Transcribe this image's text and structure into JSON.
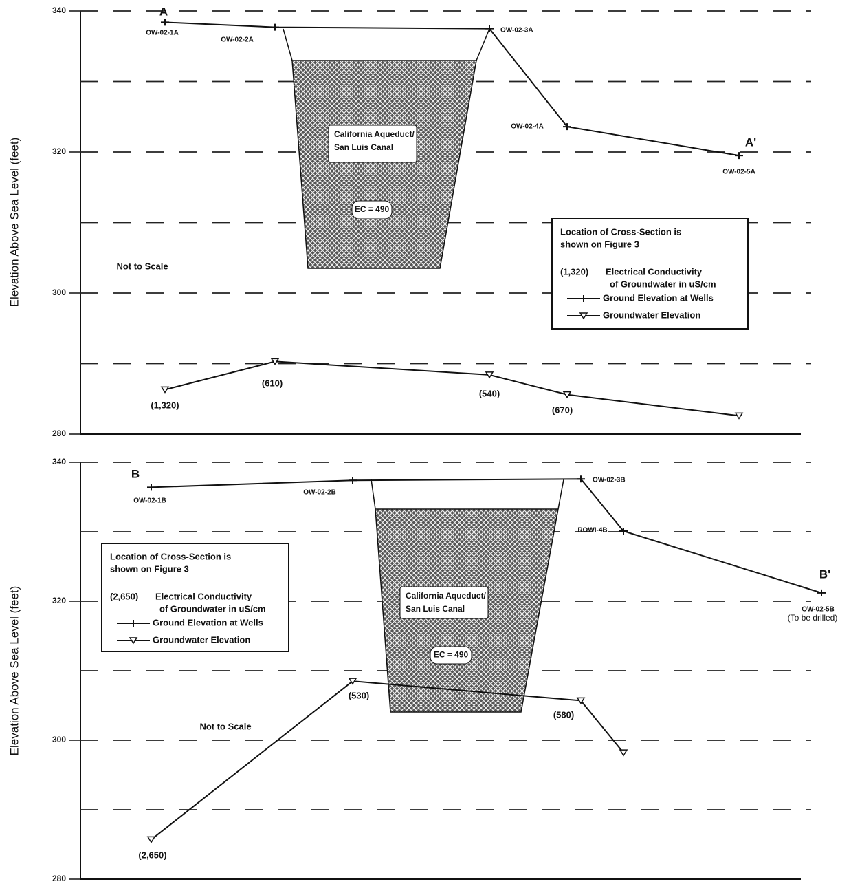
{
  "chart_data": [
    {
      "type": "line",
      "ylabel": "Elevation Above Sea Level (feet)",
      "ylim": [
        280,
        340
      ],
      "yticks": [
        280,
        300,
        320,
        340
      ],
      "minor_yticks": [
        290,
        310,
        330
      ],
      "categories": [
        "OW-02-1A",
        "OW-02-2A",
        "OW-02-3A",
        "OW-02-4A",
        "OW-02-5A"
      ],
      "series": [
        {
          "name": "Ground Elevation at Wells",
          "color": "#111111",
          "values": [
            338.4,
            337.7,
            337.5,
            323.6,
            319.5
          ]
        },
        {
          "name": "Groundwater Elevation",
          "color": "#111111",
          "values": [
            286.3,
            290.3,
            288.4,
            285.6,
            282.6
          ],
          "ec_labels": [
            "(1,320)",
            "(610)",
            "(540)",
            "(670)",
            null
          ]
        }
      ],
      "section_start": "A",
      "section_end": "A'",
      "canal_label": [
        "California Aqueduct/",
        "San Luis Canal"
      ],
      "canal_ec": "EC = 490",
      "scale_note": "Not to Scale",
      "legend_note": [
        "Location of Cross-Section is",
        "shown on Figure 3"
      ],
      "legend_ec_sample": "(1,320)",
      "legend_ec_text": [
        "Electrical Conductivity",
        "of Groundwater in uS/cm"
      ]
    },
    {
      "type": "line",
      "ylabel": "Elevation Above Sea Level (feet)",
      "ylim": [
        280,
        340
      ],
      "yticks": [
        280,
        300,
        320,
        340
      ],
      "minor_yticks": [
        290,
        310,
        330
      ],
      "categories": [
        "OW-02-1B",
        "OW-02-2B",
        "OW-02-3B",
        "ROWI-4B",
        "OW-02-5B"
      ],
      "well_notes": [
        null,
        null,
        null,
        null,
        "(To be drilled)"
      ],
      "series": [
        {
          "name": "Ground Elevation at Wells",
          "color": "#111111",
          "values": [
            336.4,
            337.4,
            337.6,
            330.1,
            321.2
          ]
        },
        {
          "name": "Groundwater Elevation",
          "color": "#111111",
          "values": [
            285.7,
            308.5,
            305.7,
            298.2,
            null
          ],
          "ec_labels": [
            "(2,650)",
            "(530)",
            "(580)",
            null,
            null
          ]
        }
      ],
      "section_start": "B",
      "section_end": "B'",
      "canal_label": [
        "California Aqueduct/",
        "San Luis Canal"
      ],
      "canal_ec": "EC = 490",
      "scale_note": "Not to Scale",
      "legend_note": [
        "Location of Cross-Section is",
        "shown on Figure 3"
      ],
      "legend_ec_sample": "(2,650)",
      "legend_ec_text": [
        "Electrical Conductivity",
        "of Groundwater in uS/cm"
      ]
    }
  ]
}
